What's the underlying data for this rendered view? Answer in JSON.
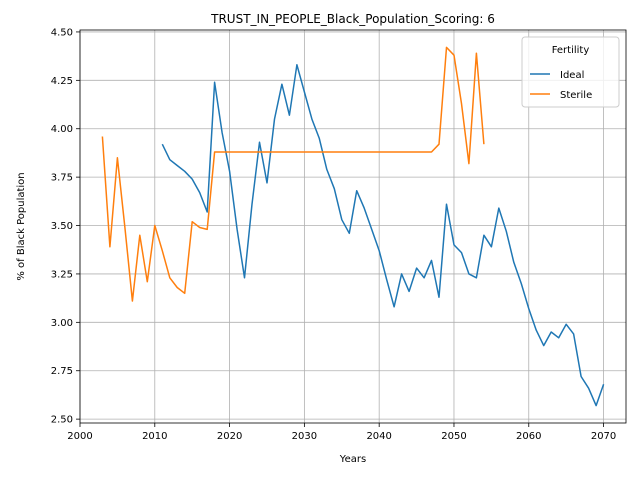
{
  "chart_data": {
    "type": "line",
    "title": "TRUST_IN_PEOPLE_Black_Population_Scoring: 6",
    "xlabel": "Years",
    "ylabel": "% of Black Population",
    "xlim": [
      2000,
      2073
    ],
    "ylim": [
      2.48,
      4.51
    ],
    "xticks": [
      2000,
      2010,
      2020,
      2030,
      2040,
      2050,
      2060,
      2070
    ],
    "yticks": [
      2.5,
      2.75,
      3.0,
      3.25,
      3.5,
      3.75,
      4.0,
      4.25,
      4.5
    ],
    "grid": true,
    "legend": {
      "title": "Fertility",
      "placement": "top-right"
    },
    "series": [
      {
        "name": "Ideal",
        "color": "#1f77b4",
        "x": [
          2011,
          2012,
          2013,
          2014,
          2015,
          2016,
          2017,
          2018,
          2019,
          2020,
          2021,
          2022,
          2023,
          2024,
          2025,
          2026,
          2027,
          2028,
          2029,
          2030,
          2031,
          2032,
          2033,
          2034,
          2035,
          2036,
          2037,
          2038,
          2039,
          2040,
          2041,
          2042,
          2043,
          2044,
          2045,
          2046,
          2047,
          2048,
          2049,
          2050,
          2051,
          2052,
          2053,
          2054,
          2055,
          2056,
          2057,
          2058,
          2059,
          2060,
          2061,
          2062,
          2063,
          2064,
          2065,
          2066,
          2067,
          2068,
          2069,
          2070
        ],
        "values": [
          3.92,
          3.84,
          3.81,
          3.78,
          3.74,
          3.67,
          3.57,
          4.24,
          3.98,
          3.78,
          3.48,
          3.23,
          3.61,
          3.93,
          3.72,
          4.05,
          4.23,
          4.07,
          4.33,
          4.19,
          4.05,
          3.95,
          3.79,
          3.69,
          3.53,
          3.46,
          3.68,
          3.59,
          3.48,
          3.37,
          3.22,
          3.08,
          3.25,
          3.16,
          3.28,
          3.23,
          3.32,
          3.13,
          3.61,
          3.4,
          3.36,
          3.25,
          3.23,
          3.45,
          3.39,
          3.59,
          3.47,
          3.31,
          3.2,
          3.07,
          2.96,
          2.88,
          2.95,
          2.92,
          2.99,
          2.94,
          2.72,
          2.66,
          2.57,
          2.68
        ]
      },
      {
        "name": "Sterile",
        "color": "#ff7f0e",
        "x": [
          2003,
          2004,
          2005,
          2006,
          2007,
          2008,
          2009,
          2010,
          2011,
          2012,
          2013,
          2014,
          2015,
          2016,
          2017,
          2018,
          2019,
          2020,
          2021,
          2022,
          2023,
          2024,
          2025,
          2026,
          2027,
          2028,
          2029,
          2030,
          2031,
          2032,
          2033,
          2034,
          2035,
          2036,
          2037,
          2038,
          2039,
          2040,
          2041,
          2042,
          2043,
          2044,
          2045,
          2046,
          2047,
          2048,
          2049,
          2050,
          2051,
          2052,
          2053,
          2054
        ],
        "values": [
          3.96,
          3.39,
          3.85,
          3.49,
          3.11,
          3.45,
          3.21,
          3.5,
          3.37,
          3.23,
          3.18,
          3.15,
          3.52,
          3.49,
          3.48,
          3.88,
          3.88,
          3.88,
          3.88,
          3.88,
          3.88,
          3.88,
          3.88,
          3.88,
          3.88,
          3.88,
          3.88,
          3.88,
          3.88,
          3.88,
          3.88,
          3.88,
          3.88,
          3.88,
          3.88,
          3.88,
          3.88,
          3.88,
          3.88,
          3.88,
          3.88,
          3.88,
          3.88,
          3.88,
          3.88,
          3.92,
          4.42,
          4.38,
          4.13,
          3.82,
          4.39,
          3.92
        ]
      }
    ]
  }
}
